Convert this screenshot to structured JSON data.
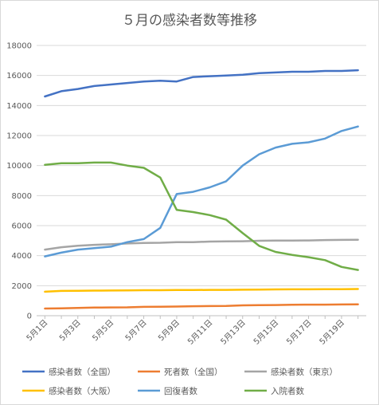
{
  "chart_data": {
    "type": "line",
    "title": "５月の感染者数等推移",
    "xlabel": "",
    "ylabel": "",
    "ylim": [
      0,
      18000
    ],
    "yticks": [
      0,
      2000,
      4000,
      6000,
      8000,
      10000,
      12000,
      14000,
      16000,
      18000
    ],
    "ytick_labels": [
      "0",
      "2000",
      "4000",
      "6000",
      "8000",
      "10000",
      "12000",
      "14000",
      "16000",
      "18000"
    ],
    "grid": "horizontal",
    "legend_position": "bottom",
    "x": [
      1,
      2,
      3,
      4,
      5,
      6,
      7,
      8,
      9,
      10,
      11,
      12,
      13,
      14,
      15,
      16,
      17,
      18,
      19,
      20
    ],
    "x_tick_labels": [
      "5月1日",
      "5月3日",
      "5月5日",
      "5月7日",
      "5月9日",
      "5月11日",
      "5月13日",
      "5月15日",
      "5月17日",
      "5月19日"
    ],
    "x_tick_positions": [
      1,
      3,
      5,
      7,
      9,
      11,
      13,
      15,
      17,
      19
    ],
    "series": [
      {
        "name": "感染者数（全国）",
        "color": "#4472c4",
        "values": [
          14600,
          14950,
          15100,
          15300,
          15400,
          15500,
          15600,
          15650,
          15600,
          15900,
          15950,
          16000,
          16050,
          16150,
          16200,
          16250,
          16250,
          16300,
          16300,
          16350
        ]
      },
      {
        "name": "死者数（全国）",
        "color": "#ed7d31",
        "values": [
          480,
          490,
          520,
          540,
          550,
          560,
          590,
          600,
          610,
          630,
          640,
          650,
          690,
          700,
          710,
          730,
          740,
          740,
          750,
          760
        ]
      },
      {
        "name": "感染者数（東京）",
        "color": "#a5a5a5",
        "values": [
          4400,
          4560,
          4660,
          4720,
          4760,
          4810,
          4840,
          4860,
          4900,
          4900,
          4940,
          4950,
          4960,
          4990,
          5000,
          5000,
          5010,
          5040,
          5050,
          5060
        ]
      },
      {
        "name": "感染者数（大阪）",
        "color": "#ffc000",
        "values": [
          1600,
          1650,
          1660,
          1670,
          1680,
          1690,
          1700,
          1700,
          1710,
          1710,
          1720,
          1720,
          1730,
          1740,
          1750,
          1760,
          1760,
          1770,
          1770,
          1780
        ]
      },
      {
        "name": "回復者数",
        "color": "#5b9bd5",
        "values": [
          3950,
          4200,
          4400,
          4500,
          4600,
          4900,
          5100,
          5850,
          8100,
          8250,
          8550,
          8950,
          10000,
          10750,
          11200,
          11450,
          11550,
          11800,
          12300,
          12600
        ]
      },
      {
        "name": "入院者数",
        "color": "#70ad47",
        "values": [
          10050,
          10150,
          10150,
          10200,
          10200,
          10000,
          9850,
          9200,
          7050,
          6900,
          6700,
          6400,
          5500,
          4650,
          4250,
          4050,
          3900,
          3700,
          3250,
          3050
        ]
      }
    ]
  }
}
